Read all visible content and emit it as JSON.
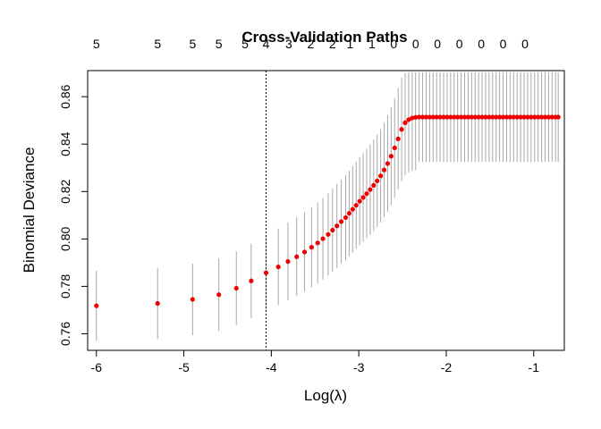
{
  "chart_data": {
    "type": "scatter",
    "title": "Cross-Validation Paths",
    "xlabel": "Log(λ)",
    "ylabel": "Binomial Deviance",
    "xlim": [
      -6.1,
      -0.65
    ],
    "ylim": [
      0.753,
      0.871
    ],
    "x_ticks": [
      -6,
      -5,
      -4,
      -3,
      -2,
      -1
    ],
    "y_ticks": [
      0.76,
      0.78,
      0.8,
      0.82,
      0.84,
      0.86
    ],
    "y_tick_labels": [
      "0.76",
      "0.78",
      "0.80",
      "0.82",
      "0.84",
      "0.86"
    ],
    "vline_x": -4.06,
    "top_axis": {
      "x": [
        -6.0,
        -5.3,
        -4.9,
        -4.6,
        -4.3,
        -4.06,
        -3.8,
        -3.55,
        -3.3,
        -3.1,
        -2.85,
        -2.6,
        -2.35,
        -2.1,
        -1.85,
        -1.6,
        -1.35,
        -1.1
      ],
      "labels": [
        "5",
        "5",
        "5",
        "5",
        "5",
        "4",
        "3",
        "2",
        "2",
        "1",
        "1",
        "0",
        "0",
        "0",
        "0",
        "0",
        "0",
        "0"
      ]
    },
    "series": [
      {
        "x": [
          -6.0,
          -5.3,
          -4.9,
          -4.6,
          -4.4,
          -4.23,
          -4.06,
          -3.92,
          -3.81,
          -3.71,
          -3.62,
          -3.54,
          -3.47,
          -3.41,
          -3.35,
          -3.3,
          -3.25,
          -3.2,
          -3.15,
          -3.11,
          -3.07,
          -3.03,
          -2.99,
          -2.95,
          -2.91,
          -2.87,
          -2.83,
          -2.79,
          -2.75,
          -2.71,
          -2.67,
          -2.63,
          -2.59,
          -2.55,
          -2.51,
          -2.47,
          -2.43,
          -2.39,
          -2.35,
          -2.31,
          -2.27,
          -2.23,
          -2.19,
          -2.15,
          -2.11,
          -2.07,
          -2.03,
          -1.99,
          -1.95,
          -1.91,
          -1.87,
          -1.83,
          -1.79,
          -1.75,
          -1.71,
          -1.67,
          -1.63,
          -1.59,
          -1.55,
          -1.51,
          -1.47,
          -1.43,
          -1.39,
          -1.35,
          -1.31,
          -1.27,
          -1.23,
          -1.19,
          -1.15,
          -1.11,
          -1.07,
          -1.03,
          -0.99,
          -0.95,
          -0.91,
          -0.87,
          -0.83,
          -0.79,
          -0.75,
          -0.72
        ],
        "y": [
          0.7718,
          0.7728,
          0.7745,
          0.7765,
          0.7792,
          0.7823,
          0.7857,
          0.7882,
          0.7905,
          0.7925,
          0.7945,
          0.7965,
          0.7983,
          0.8001,
          0.8019,
          0.8037,
          0.8055,
          0.8073,
          0.809,
          0.8108,
          0.8125,
          0.8142,
          0.8159,
          0.8175,
          0.8191,
          0.8208,
          0.8226,
          0.8245,
          0.8266,
          0.8291,
          0.8318,
          0.8349,
          0.8384,
          0.8422,
          0.8462,
          0.849,
          0.8503,
          0.851,
          0.8513,
          0.8514,
          0.8514,
          0.8514,
          0.8514,
          0.8514,
          0.8514,
          0.8514,
          0.8514,
          0.8514,
          0.8514,
          0.8514,
          0.8514,
          0.8514,
          0.8514,
          0.8514,
          0.8514,
          0.8514,
          0.8514,
          0.8514,
          0.8514,
          0.8514,
          0.8514,
          0.8514,
          0.8514,
          0.8514,
          0.8514,
          0.8514,
          0.8514,
          0.8514,
          0.8514,
          0.8514,
          0.8514,
          0.8514,
          0.8514,
          0.8514,
          0.8514,
          0.8514,
          0.8514,
          0.8514,
          0.8514,
          0.8514
        ],
        "y_lower": [
          0.757,
          0.7578,
          0.7594,
          0.7612,
          0.7637,
          0.7666,
          0.7697,
          0.772,
          0.7741,
          0.7759,
          0.7778,
          0.7796,
          0.7813,
          0.7829,
          0.7845,
          0.7862,
          0.7878,
          0.7895,
          0.791,
          0.7927,
          0.7942,
          0.7958,
          0.7973,
          0.7988,
          0.8002,
          0.8017,
          0.8033,
          0.805,
          0.8069,
          0.8091,
          0.8115,
          0.8143,
          0.8174,
          0.8208,
          0.8244,
          0.8269,
          0.8281,
          0.8287,
          0.829,
          0.8325,
          0.8325,
          0.8325,
          0.8325,
          0.8325,
          0.8325,
          0.8325,
          0.8325,
          0.8325,
          0.8325,
          0.8325,
          0.8325,
          0.8325,
          0.8325,
          0.8325,
          0.8325,
          0.8325,
          0.8325,
          0.8325,
          0.8325,
          0.8325,
          0.8325,
          0.8325,
          0.8325,
          0.8325,
          0.8325,
          0.8325,
          0.8325,
          0.8325,
          0.8325,
          0.8325,
          0.8325,
          0.8325,
          0.8325,
          0.8325,
          0.8325,
          0.8325,
          0.8325,
          0.8325,
          0.8325,
          0.8325
        ],
        "y_upper": [
          0.7866,
          0.7878,
          0.7896,
          0.7918,
          0.7947,
          0.798,
          0.8017,
          0.8044,
          0.8069,
          0.8091,
          0.8112,
          0.8134,
          0.8153,
          0.8173,
          0.8193,
          0.8212,
          0.8232,
          0.8251,
          0.827,
          0.8289,
          0.8308,
          0.8326,
          0.8345,
          0.8362,
          0.838,
          0.8399,
          0.8419,
          0.844,
          0.8463,
          0.8491,
          0.8521,
          0.8555,
          0.8594,
          0.8636,
          0.868,
          0.87,
          0.8703,
          0.8703,
          0.8703,
          0.8703,
          0.8703,
          0.8703,
          0.8703,
          0.8703,
          0.8703,
          0.8703,
          0.8703,
          0.8703,
          0.8703,
          0.8703,
          0.8703,
          0.8703,
          0.8703,
          0.8703,
          0.8703,
          0.8703,
          0.8703,
          0.8703,
          0.8703,
          0.8703,
          0.8703,
          0.8703,
          0.8703,
          0.8703,
          0.8703,
          0.8703,
          0.8703,
          0.8703,
          0.8703,
          0.8703,
          0.8703,
          0.8703,
          0.8703,
          0.8703,
          0.8703,
          0.8703,
          0.8703,
          0.8703,
          0.8703,
          0.8703
        ]
      }
    ],
    "grid": false,
    "legend": "none",
    "colors": {
      "points": "#ee0000",
      "error_bars": "#a8a8a8",
      "axes": "#000000"
    }
  }
}
